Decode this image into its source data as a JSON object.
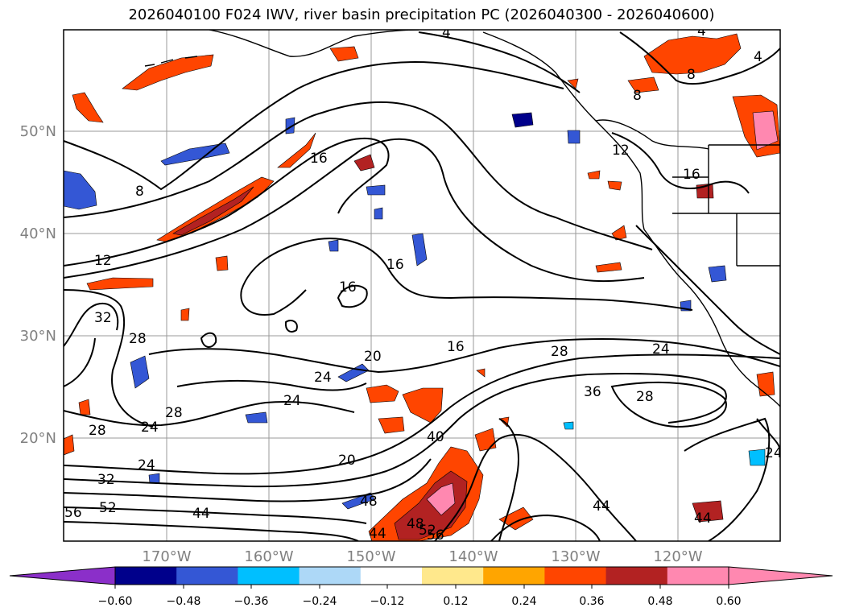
{
  "title": "2026040100 F024 IWV, river basin precipitation PC (2026040300 - 2026040600)",
  "map": {
    "lat_labels": [
      "50°N",
      "40°N",
      "30°N",
      "20°N"
    ],
    "lon_labels": [
      "170°W",
      "160°W",
      "150°W",
      "140°W",
      "130°W",
      "120°W"
    ],
    "contour_labels": [
      "4",
      "4",
      "4",
      "8",
      "8",
      "8",
      "12",
      "12",
      "16",
      "16",
      "16",
      "16",
      "16",
      "20",
      "20",
      "24",
      "24",
      "24",
      "24",
      "24",
      "24",
      "28",
      "28",
      "28",
      "28",
      "28",
      "32",
      "32",
      "36",
      "40",
      "44",
      "44",
      "44",
      "44",
      "48",
      "48",
      "52",
      "52",
      "56",
      "56"
    ]
  },
  "colorbar": {
    "ticks": [
      "−0.60",
      "−0.48",
      "−0.36",
      "−0.24",
      "−0.12",
      "0.12",
      "0.24",
      "0.36",
      "0.48",
      "0.60"
    ],
    "colors": [
      "#8b2fc9",
      "#00008b",
      "#3457d5",
      "#00bfff",
      "#add8f7",
      "#ffffff",
      "#ffe88c",
      "#ffa500",
      "#ff4500",
      "#b22222",
      "#ff88b0",
      "#ff88b0"
    ]
  }
}
